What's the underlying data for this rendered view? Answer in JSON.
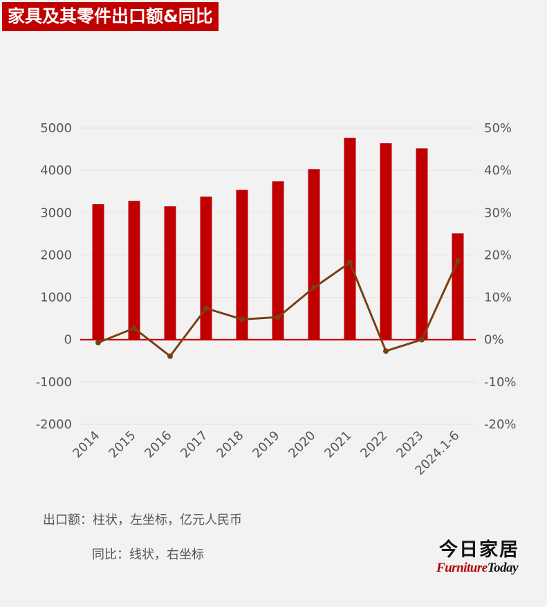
{
  "colors": {
    "background": "#f2f2f2",
    "bar": "#c00000",
    "line": "#7b3f14",
    "title_bg": "#c00000",
    "axis_text": "#555555",
    "grid": "#e2e2e2",
    "zero_line": "#c00000"
  },
  "chart_data": {
    "type": "bar+line",
    "title": "家具及其零件出口额&同比",
    "categories": [
      "2014",
      "2015",
      "2016",
      "2017",
      "2018",
      "2019",
      "2020",
      "2021",
      "2022",
      "2023",
      "2024.1-6"
    ],
    "series": [
      {
        "type": "bar",
        "axis": "left",
        "values": [
          3200,
          3280,
          3150,
          3380,
          3540,
          3740,
          4030,
          4770,
          4640,
          4520,
          2510
        ]
      },
      {
        "type": "line",
        "axis": "right",
        "values": [
          -0.7,
          2.7,
          -3.9,
          7.4,
          4.8,
          5.3,
          12.3,
          18.2,
          -2.7,
          0.0,
          18.6
        ]
      }
    ],
    "left_axis": {
      "ylim": [
        -2000,
        5000
      ],
      "ticks": [
        "-2000",
        "-1000",
        "0",
        "1000",
        "2000",
        "3000",
        "4000",
        "5000"
      ]
    },
    "right_axis": {
      "ylim": [
        -20,
        50
      ],
      "unit": "%",
      "ticks": [
        "-20%",
        "-10%",
        "0%",
        "10%",
        "20%",
        "30%",
        "40%",
        "50%"
      ]
    },
    "grid": true,
    "legend": "none"
  },
  "notes": {
    "line1": "出口额：柱状，左坐标，亿元人民币",
    "line2": "同比：线状，右坐标"
  },
  "brand": {
    "cn": "今日家居",
    "en_1": "Furniture",
    "en_2": "Today"
  }
}
